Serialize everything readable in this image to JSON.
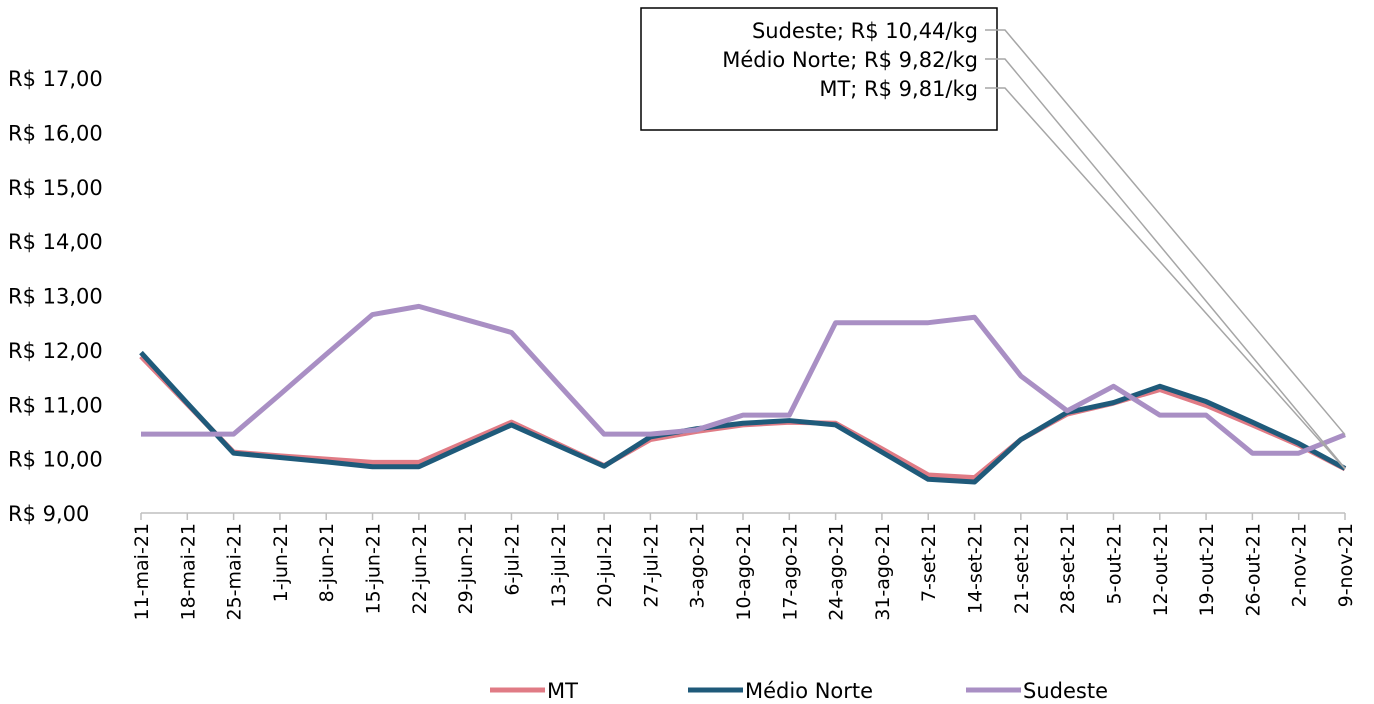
{
  "chart_data": {
    "type": "line",
    "categories": [
      "11-mai-21",
      "18-mai-21",
      "25-mai-21",
      "1-jun-21",
      "8-jun-21",
      "15-jun-21",
      "22-jun-21",
      "29-jun-21",
      "6-jul-21",
      "13-jul-21",
      "20-jul-21",
      "27-jul-21",
      "3-ago-21",
      "10-ago-21",
      "17-ago-21",
      "24-ago-21",
      "31-ago-21",
      "7-set-21",
      "14-set-21",
      "21-set-21",
      "28-set-21",
      "5-out-21",
      "12-out-21",
      "19-out-21",
      "26-out-21",
      "2-nov-21",
      "9-nov-21"
    ],
    "series": [
      {
        "name": "MT",
        "color": "#e07b85",
        "values": [
          11.88,
          11.0,
          10.12,
          10.05,
          9.99,
          9.93,
          9.93,
          10.3,
          10.67,
          10.27,
          9.87,
          10.35,
          10.5,
          10.62,
          10.67,
          10.65,
          10.18,
          9.7,
          9.65,
          10.35,
          10.82,
          11.02,
          11.27,
          10.98,
          10.62,
          10.25,
          9.81
        ]
      },
      {
        "name": "Médio Norte",
        "color": "#1f5a7a",
        "values": [
          11.95,
          11.02,
          10.1,
          10.02,
          9.94,
          9.85,
          9.85,
          10.24,
          10.62,
          10.24,
          9.86,
          10.4,
          10.55,
          10.65,
          10.7,
          10.62,
          10.12,
          9.62,
          9.57,
          10.35,
          10.85,
          11.03,
          11.33,
          11.05,
          10.67,
          10.28,
          9.82
        ]
      },
      {
        "name": "Sudeste",
        "color": "#a98fc4",
        "values": [
          10.45,
          10.45,
          10.45,
          11.18,
          11.92,
          12.65,
          12.8,
          12.56,
          12.32,
          11.38,
          10.45,
          10.45,
          10.53,
          10.8,
          10.8,
          12.5,
          12.5,
          12.5,
          12.6,
          11.52,
          10.88,
          11.33,
          10.8,
          10.8,
          10.1,
          10.1,
          10.44
        ]
      }
    ],
    "ylim": [
      9,
      17
    ],
    "yticks": [
      {
        "value": 9,
        "label": "R$ 9,00"
      },
      {
        "value": 10,
        "label": "R$ 10,00"
      },
      {
        "value": 11,
        "label": "R$ 11,00"
      },
      {
        "value": 12,
        "label": "R$ 12,00"
      },
      {
        "value": 13,
        "label": "R$ 13,00"
      },
      {
        "value": 14,
        "label": "R$ 14,00"
      },
      {
        "value": 15,
        "label": "R$ 15,00"
      },
      {
        "value": 16,
        "label": "R$ 16,00"
      },
      {
        "value": 17,
        "label": "R$ 17,00"
      }
    ],
    "annotations": [
      "Sudeste; R$ 10,44/kg",
      "Médio Norte; R$ 9,82/kg",
      "MT; R$ 9,81/kg"
    ],
    "grid": false,
    "legend": "bottom"
  }
}
